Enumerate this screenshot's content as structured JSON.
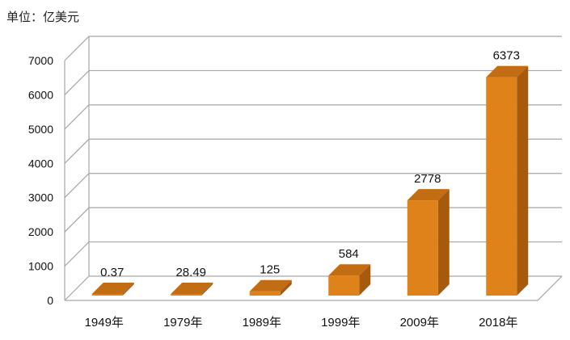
{
  "unit_label": "单位：亿美元",
  "chart_data": {
    "type": "bar",
    "title": "",
    "xlabel": "",
    "ylabel": "",
    "categories": [
      "1949年",
      "1979年",
      "1989年",
      "1999年",
      "2009年",
      "2018年"
    ],
    "values": [
      0.37,
      28.49,
      125,
      584,
      2778,
      6373
    ],
    "data_labels": [
      "0.37",
      "28.49",
      "125",
      "584",
      "2778",
      "6373"
    ],
    "ylim": [
      0,
      7000
    ],
    "yticks": [
      "0",
      "1000",
      "2000",
      "3000",
      "4000",
      "5000",
      "6000",
      "7000"
    ],
    "grid": true,
    "style": "3d-column",
    "colors": {
      "bar_front": "#e0821a",
      "bar_side": "#a85a0c",
      "bar_top": "#c26c14",
      "grid": "#a6a6a6",
      "text": "#111111"
    }
  }
}
